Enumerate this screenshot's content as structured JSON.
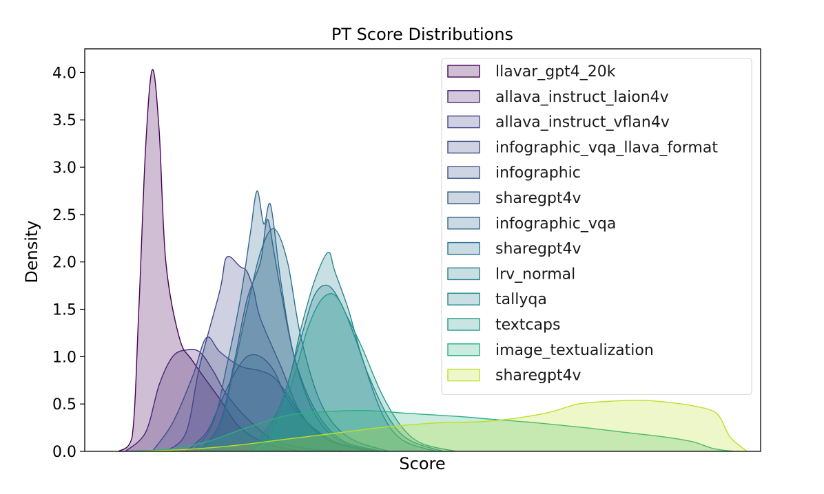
{
  "chart_data": {
    "type": "area",
    "title": "PT Score Distributions",
    "xlabel": "Score",
    "ylabel": "Density",
    "ylim": [
      0,
      4.25
    ],
    "xlim": [
      0,
      1
    ],
    "x_tick_labels_shown": false,
    "y_ticks": [
      "0.0",
      "0.5",
      "1.0",
      "1.5",
      "2.0",
      "2.5",
      "3.0",
      "3.5",
      "4.0"
    ],
    "grid": false,
    "legend_position": "top-right",
    "series": [
      {
        "name": "llavar_gpt4_20k",
        "color": "#440154",
        "points": [
          [
            0.05,
            0
          ],
          [
            0.07,
            0.15
          ],
          [
            0.08,
            1.5
          ],
          [
            0.09,
            3.2
          ],
          [
            0.1,
            4.03
          ],
          [
            0.11,
            3.4
          ],
          [
            0.12,
            2.0
          ],
          [
            0.14,
            1.2
          ],
          [
            0.16,
            0.95
          ],
          [
            0.2,
            0.55
          ],
          [
            0.23,
            0.25
          ],
          [
            0.27,
            0.08
          ],
          [
            0.32,
            0
          ]
        ]
      },
      {
        "name": "allava_instruct_laion4v",
        "color": "#482475",
        "points": [
          [
            0.06,
            0
          ],
          [
            0.09,
            0.2
          ],
          [
            0.11,
            0.7
          ],
          [
            0.13,
            1.0
          ],
          [
            0.15,
            1.07
          ],
          [
            0.17,
            1.05
          ],
          [
            0.19,
            0.85
          ],
          [
            0.21,
            0.6
          ],
          [
            0.24,
            0.35
          ],
          [
            0.28,
            0.12
          ],
          [
            0.33,
            0.03
          ],
          [
            0.38,
            0
          ]
        ]
      },
      {
        "name": "allava_instruct_vflan4v",
        "color": "#414487",
        "points": [
          [
            0.12,
            0
          ],
          [
            0.15,
            0.2
          ],
          [
            0.17,
            0.9
          ],
          [
            0.2,
            1.7
          ],
          [
            0.21,
            2.05
          ],
          [
            0.23,
            1.95
          ],
          [
            0.24,
            1.9
          ],
          [
            0.25,
            1.7
          ],
          [
            0.26,
            1.4
          ],
          [
            0.29,
            0.9
          ],
          [
            0.32,
            0.4
          ],
          [
            0.36,
            0.12
          ],
          [
            0.42,
            0
          ]
        ]
      },
      {
        "name": "infographic_vqa_llava_format",
        "color": "#3e4a89",
        "points": [
          [
            0.1,
            0
          ],
          [
            0.13,
            0.3
          ],
          [
            0.16,
            0.8
          ],
          [
            0.18,
            1.2
          ],
          [
            0.2,
            1.05
          ],
          [
            0.23,
            0.9
          ],
          [
            0.26,
            0.85
          ],
          [
            0.28,
            0.78
          ],
          [
            0.3,
            0.6
          ],
          [
            0.33,
            0.3
          ],
          [
            0.37,
            0.1
          ],
          [
            0.43,
            0
          ]
        ]
      },
      {
        "name": "infographic",
        "color": "#3b528b",
        "points": [
          [
            0.15,
            0
          ],
          [
            0.18,
            0.2
          ],
          [
            0.2,
            0.5
          ],
          [
            0.22,
            0.8
          ],
          [
            0.24,
            1.0
          ],
          [
            0.26,
            1.0
          ],
          [
            0.28,
            0.85
          ],
          [
            0.3,
            0.55
          ],
          [
            0.33,
            0.3
          ],
          [
            0.37,
            0.1
          ],
          [
            0.42,
            0
          ]
        ]
      },
      {
        "name": "sharegpt4v",
        "color": "#355f8d",
        "points": [
          [
            0.17,
            0
          ],
          [
            0.2,
            0.3
          ],
          [
            0.22,
            0.9
          ],
          [
            0.24,
            1.6
          ],
          [
            0.26,
            2.0
          ],
          [
            0.27,
            2.45
          ],
          [
            0.28,
            2.1
          ],
          [
            0.29,
            1.7
          ],
          [
            0.31,
            1.0
          ],
          [
            0.34,
            0.45
          ],
          [
            0.38,
            0.12
          ],
          [
            0.44,
            0
          ]
        ]
      },
      {
        "name": "infographic_vqa",
        "color": "#31688e",
        "points": [
          [
            0.16,
            0
          ],
          [
            0.19,
            0.3
          ],
          [
            0.21,
            0.9
          ],
          [
            0.23,
            1.6
          ],
          [
            0.245,
            2.3
          ],
          [
            0.255,
            2.75
          ],
          [
            0.265,
            2.4
          ],
          [
            0.275,
            2.6
          ],
          [
            0.29,
            1.8
          ],
          [
            0.31,
            1.0
          ],
          [
            0.34,
            0.4
          ],
          [
            0.38,
            0.1
          ],
          [
            0.44,
            0
          ]
        ]
      },
      {
        "name": "sharegpt4v",
        "color": "#2c728e",
        "points": [
          [
            0.17,
            0
          ],
          [
            0.2,
            0.25
          ],
          [
            0.22,
            0.85
          ],
          [
            0.24,
            1.5
          ],
          [
            0.26,
            2.1
          ],
          [
            0.28,
            2.35
          ],
          [
            0.3,
            2.0
          ],
          [
            0.32,
            1.2
          ],
          [
            0.35,
            0.5
          ],
          [
            0.39,
            0.15
          ],
          [
            0.45,
            0
          ]
        ]
      },
      {
        "name": "lrv_normal",
        "color": "#287d8e",
        "points": [
          [
            0.24,
            0
          ],
          [
            0.26,
            0.15
          ],
          [
            0.29,
            0.5
          ],
          [
            0.32,
            1.2
          ],
          [
            0.34,
            1.65
          ],
          [
            0.36,
            1.75
          ],
          [
            0.38,
            1.55
          ],
          [
            0.4,
            1.2
          ],
          [
            0.42,
            0.8
          ],
          [
            0.45,
            0.35
          ],
          [
            0.48,
            0.12
          ],
          [
            0.53,
            0
          ]
        ]
      },
      {
        "name": "tallyqa",
        "color": "#25858e",
        "points": [
          [
            0.24,
            0
          ],
          [
            0.27,
            0.2
          ],
          [
            0.3,
            0.7
          ],
          [
            0.32,
            1.3
          ],
          [
            0.34,
            1.8
          ],
          [
            0.36,
            2.1
          ],
          [
            0.37,
            1.9
          ],
          [
            0.39,
            1.5
          ],
          [
            0.41,
            1.0
          ],
          [
            0.44,
            0.4
          ],
          [
            0.47,
            0.12
          ],
          [
            0.52,
            0
          ]
        ]
      },
      {
        "name": "textcaps",
        "color": "#1e9b8a",
        "points": [
          [
            0.25,
            0
          ],
          [
            0.28,
            0.2
          ],
          [
            0.31,
            0.8
          ],
          [
            0.33,
            1.3
          ],
          [
            0.35,
            1.6
          ],
          [
            0.37,
            1.65
          ],
          [
            0.39,
            1.4
          ],
          [
            0.41,
            1.1
          ],
          [
            0.44,
            0.6
          ],
          [
            0.47,
            0.25
          ],
          [
            0.5,
            0.08
          ],
          [
            0.55,
            0
          ]
        ]
      },
      {
        "name": "image_textualization",
        "color": "#2ab07f",
        "points": [
          [
            0.05,
            0
          ],
          [
            0.12,
            0.02
          ],
          [
            0.18,
            0.1
          ],
          [
            0.24,
            0.25
          ],
          [
            0.3,
            0.38
          ],
          [
            0.36,
            0.42
          ],
          [
            0.42,
            0.43
          ],
          [
            0.48,
            0.4
          ],
          [
            0.55,
            0.37
          ],
          [
            0.6,
            0.34
          ],
          [
            0.67,
            0.3
          ],
          [
            0.74,
            0.25
          ],
          [
            0.8,
            0.2
          ],
          [
            0.86,
            0.15
          ],
          [
            0.9,
            0.1
          ],
          [
            0.93,
            0.03
          ],
          [
            0.96,
            0
          ]
        ]
      },
      {
        "name": "sharegpt4v",
        "color": "#bddf26",
        "points": [
          [
            0.08,
            0
          ],
          [
            0.15,
            0.02
          ],
          [
            0.22,
            0.06
          ],
          [
            0.3,
            0.13
          ],
          [
            0.38,
            0.2
          ],
          [
            0.45,
            0.26
          ],
          [
            0.52,
            0.3
          ],
          [
            0.6,
            0.32
          ],
          [
            0.68,
            0.4
          ],
          [
            0.73,
            0.5
          ],
          [
            0.78,
            0.53
          ],
          [
            0.82,
            0.54
          ],
          [
            0.86,
            0.52
          ],
          [
            0.9,
            0.48
          ],
          [
            0.935,
            0.4
          ],
          [
            0.955,
            0.15
          ],
          [
            0.98,
            0
          ]
        ]
      }
    ]
  }
}
